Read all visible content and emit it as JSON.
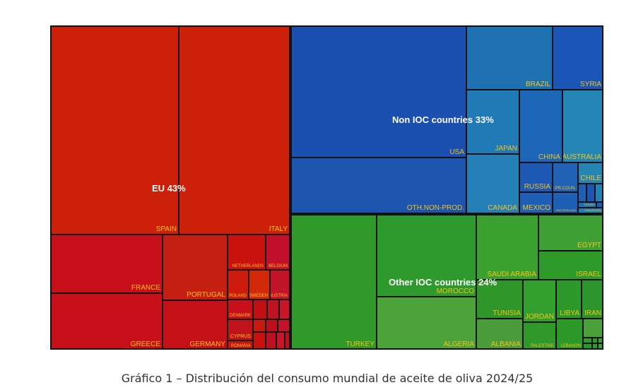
{
  "caption": "Gráfico 1 – Distribución del consumo mundial de aceite de oliva 2024/25",
  "chart_data": {
    "type": "treemap",
    "title": "",
    "groups": [
      {
        "name": "EU 43%",
        "color": "#c8160e",
        "children": [
          "SPAIN",
          "ITALY",
          "FRANCE",
          "PORTUGAL",
          "NETHERLANDS",
          "BELGIUM",
          "POLAND",
          "SWEDEN",
          "AUSTRIA",
          "DENMARK",
          "CYPRUS",
          "GREECE",
          "GERMANY",
          "ROMANIA"
        ]
      },
      {
        "name": "Non IOC countries 33%",
        "color": "#1b4fb0",
        "children": [
          "USA",
          "OTH.NON-PROD.",
          "BRAZIL",
          "SYRIA",
          "JAPAN",
          "CHINA",
          "AUSTRALIA",
          "CANADA",
          "MEXICO",
          "RUSSIA",
          "OTHER PR.COUN.",
          "CHILE",
          "TAIWAN",
          "SWITZERLAND",
          "SINGAPORE"
        ]
      },
      {
        "name": "Other IOC countries 24%",
        "color": "#2f9a2a",
        "children": [
          "TURKEY",
          "MOROCCO",
          "ALGERIA",
          "SAUDI ARABIA",
          "EGYPT",
          "ISRAEL",
          "TUNISIA",
          "JORDAN",
          "LIBYA",
          "IRAN",
          "ALBANIA",
          "PALESTINE",
          "LEBANON"
        ]
      }
    ],
    "cell_labels": {
      "spain": "SPAIN",
      "italy": "ITALY",
      "france": "FRANCE",
      "portugal": "PORTUGAL",
      "netherlands": "NETHERLANDS",
      "belgium": "BELGIUM",
      "poland": "POLAND",
      "sweden": "SWEDEN",
      "austria": "AUSTRIA",
      "denmark": "DENMARK",
      "cyprus": "CYPRUS",
      "greece": "GREECE",
      "germany": "GERMANY",
      "romania": "ROMANIA",
      "usa": "USA",
      "oth_non_prod": "OTH.NON-PROD.",
      "brazil": "BRAZIL",
      "syria": "SYRIA",
      "japan": "JAPAN",
      "china": "CHINA",
      "australia": "AUSTRALIA",
      "canada": "CANADA",
      "mexico": "MEXICO",
      "russia": "RUSSIA",
      "other_pr_coun": "OTHER PR.COUN.",
      "chile": "CHILE",
      "taiwan": "TAIWAN",
      "switzerland": "SWITZERLAND",
      "singapore": "SINGAPORE",
      "turkey": "TURKEY",
      "morocco": "MOROCCO",
      "algeria": "ALGERIA",
      "saudi_arabia": "SAUDI ARABIA",
      "egypt": "EGYPT",
      "israel": "ISRAEL",
      "tunisia": "TUNISIA",
      "jordan": "JORDAN",
      "libya": "LIBYA",
      "iran": "IRAN",
      "albania": "ALBANIA",
      "palestine": "PALESTINE",
      "lebanon": "LEBANON"
    },
    "label_color": "#f6c21c"
  }
}
